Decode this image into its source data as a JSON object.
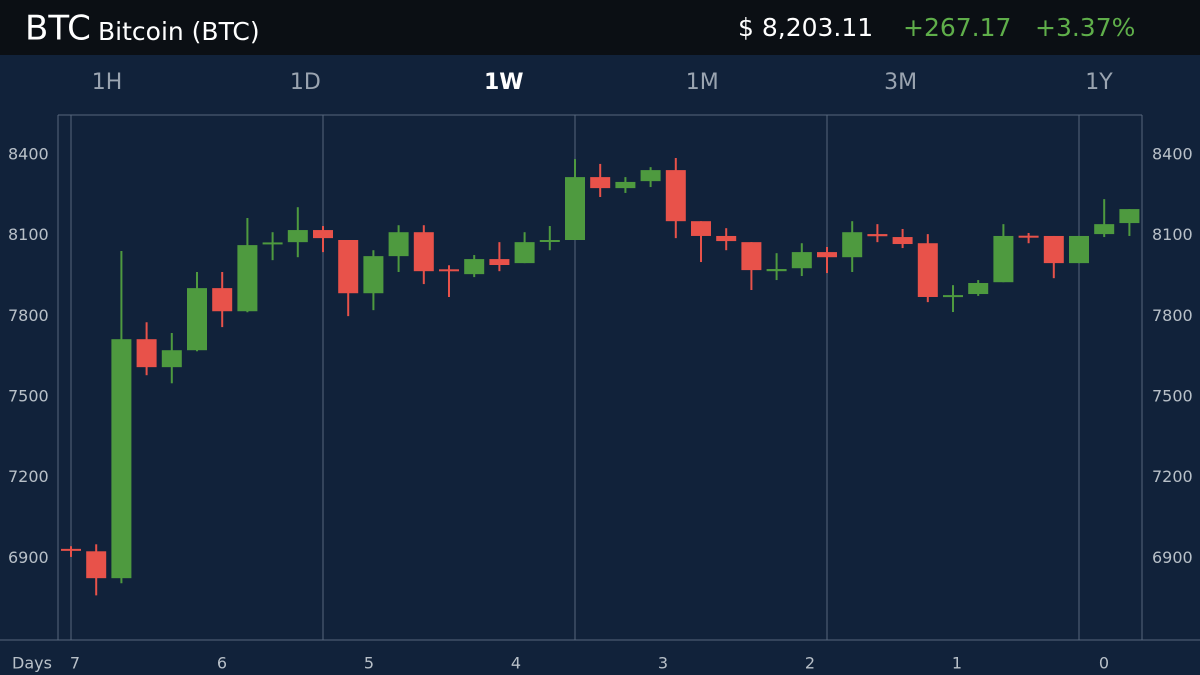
{
  "header": {
    "symbol": "BTC",
    "name": "Bitcoin (BTC)",
    "price": "$ 8,203.11",
    "change": "+267.17",
    "change_pct": "+3.37%"
  },
  "tabs": [
    "1H",
    "1D",
    "1W",
    "1M",
    "3M",
    "1Y"
  ],
  "active_tab_index": 2,
  "chart_data": {
    "type": "candlestick",
    "up_color": "#4e9a3f",
    "down_color": "#e8524a",
    "open": [
      6935,
      6926,
      6826,
      7715,
      7611,
      7674,
      7905,
      7819,
      8070,
      8076,
      8121,
      8084,
      7886,
      8024,
      8113,
      7975,
      7957,
      8013,
      7998,
      8080,
      8084,
      8318,
      8277,
      8303,
      8344,
      8154,
      8099,
      8076,
      7968,
      7979,
      8039,
      8020,
      8106,
      8095,
      8072,
      7872,
      7883,
      7927,
      8100,
      8099,
      7998,
      8106,
      8147
    ],
    "high": [
      6945,
      6952,
      8043,
      7778,
      7738,
      7965,
      7965,
      8166,
      8113,
      8206,
      8136,
      8084,
      8046,
      8139,
      8139,
      7990,
      8028,
      8076,
      8113,
      8136,
      8385,
      8367,
      8318,
      8355,
      8389,
      8154,
      8128,
      8076,
      8035,
      8072,
      8058,
      8154,
      8143,
      8125,
      8106,
      7916,
      7935,
      8143,
      8110,
      8099,
      8099,
      8236,
      8199
    ],
    "low": [
      6905,
      6762,
      6807,
      7581,
      7551,
      7670,
      7760,
      7815,
      8009,
      8020,
      8039,
      7801,
      7823,
      7965,
      7920,
      7872,
      7946,
      7968,
      7998,
      8046,
      8084,
      8244,
      8259,
      8281,
      8091,
      8002,
      8046,
      7898,
      7935,
      7950,
      7961,
      7965,
      8076,
      8054,
      7853,
      7816,
      7876,
      7927,
      8072,
      7942,
      7998,
      8095,
      8099
    ],
    "close": [
      6932,
      6826,
      7715,
      7611,
      7674,
      7905,
      7819,
      8065,
      8075,
      8121,
      8091,
      7886,
      8024,
      8113,
      7968,
      7972,
      8013,
      7991,
      8076,
      8084,
      8318,
      8277,
      8300,
      8344,
      8154,
      8099,
      8080,
      7972,
      7976,
      8039,
      8020,
      8113,
      8098,
      8069,
      7872,
      7879,
      7924,
      8099,
      8097,
      7998,
      8099,
      8143,
      8199
    ],
    "ylim": [
      6596,
      8549
    ],
    "yticks": [
      6900,
      7200,
      7500,
      7800,
      8100,
      8400
    ],
    "x_label": "Days",
    "x_tick_labels": [
      "7",
      "6",
      "5",
      "4",
      "3",
      "2",
      "1",
      "0"
    ]
  }
}
